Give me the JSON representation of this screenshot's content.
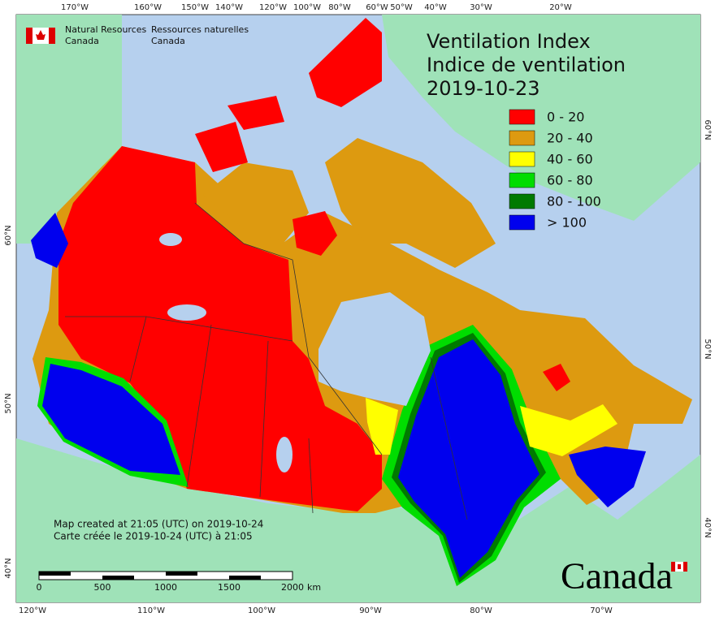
{
  "agency": {
    "en": [
      "Natural Resources",
      "Canada"
    ],
    "fr": [
      "Ressources naturelles",
      "Canada"
    ]
  },
  "title": [
    "Ventilation Index",
    "Indice de ventilation",
    "2019-10-23"
  ],
  "legend": [
    {
      "label": "0 - 20",
      "color": "#ff0000"
    },
    {
      "label": "20 - 40",
      "color": "#dd9a10"
    },
    {
      "label": "40 - 60",
      "color": "#ffff00"
    },
    {
      "label": "60 - 80",
      "color": "#00dd00"
    },
    {
      "label": "80 - 100",
      "color": "#007a00"
    },
    {
      "label": "> 100",
      "color": "#0000ee"
    }
  ],
  "graticule": {
    "top": [
      "170°W",
      "160°W",
      "150°W",
      "140°W",
      "120°W",
      "100°W",
      "80°W",
      "60°W",
      "50°W",
      "40°W",
      "30°W",
      "20°W"
    ],
    "bottom": [
      "120°W",
      "110°W",
      "100°W",
      "90°W",
      "80°W",
      "70°W"
    ],
    "left": [
      "60°N",
      "50°N",
      "40°N"
    ],
    "right": [
      "60°N",
      "50°N",
      "40°N"
    ]
  },
  "notes": [
    "Map created at 21:05 (UTC) on 2019-10-24",
    "Carte créée le 2019-10-24 (UTC) à 21:05"
  ],
  "scale_bar": {
    "labels": [
      "0",
      "500",
      "1000",
      "1500",
      "2000"
    ],
    "unit": "km"
  },
  "wordmark": "Canada"
}
